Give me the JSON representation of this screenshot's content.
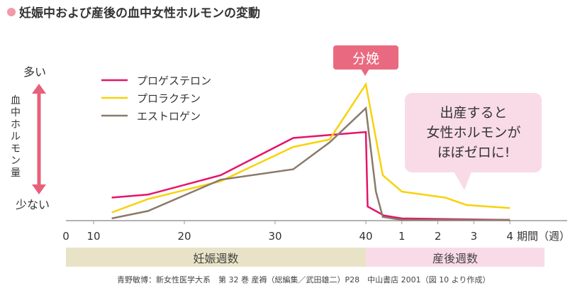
{
  "title": "妊娠中および産後の血中女性ホルモンの変動",
  "chart_data": {
    "type": "line",
    "title": "妊娠中および産後の血中女性ホルモンの変動",
    "ylabel": "血中ホルモン量",
    "y_high_label": "多い",
    "y_low_label": "少ない",
    "ylim": [
      0,
      100
    ],
    "xlabel": "期間（週）",
    "x_ticks_pregnancy": [
      "0",
      "10",
      "20",
      "30",
      "40"
    ],
    "x_ticks_postpartum": [
      "1",
      "2",
      "3",
      "4"
    ],
    "x_unit": "期間（週）",
    "grid": false,
    "legend_position": "top-left",
    "series": [
      {
        "name": "プロゲステロン",
        "color": "#e5146b",
        "points": [
          {
            "phase": "pregnancy",
            "x": 12,
            "y": 15
          },
          {
            "phase": "pregnancy",
            "x": 16,
            "y": 17
          },
          {
            "phase": "pregnancy",
            "x": 24,
            "y": 30
          },
          {
            "phase": "pregnancy",
            "x": 32,
            "y": 55
          },
          {
            "phase": "pregnancy",
            "x": 40,
            "y": 59
          },
          {
            "phase": "postpartum",
            "x": 0.05,
            "y": 9
          },
          {
            "phase": "postpartum",
            "x": 0.5,
            "y": 3
          },
          {
            "phase": "postpartum",
            "x": 1,
            "y": 1
          },
          {
            "phase": "postpartum",
            "x": 4,
            "y": 0
          }
        ]
      },
      {
        "name": "プロラクチン",
        "color": "#f8d20a",
        "points": [
          {
            "phase": "pregnancy",
            "x": 12,
            "y": 5
          },
          {
            "phase": "pregnancy",
            "x": 16,
            "y": 14
          },
          {
            "phase": "pregnancy",
            "x": 24,
            "y": 26
          },
          {
            "phase": "pregnancy",
            "x": 32,
            "y": 49
          },
          {
            "phase": "pregnancy",
            "x": 36,
            "y": 54
          },
          {
            "phase": "pregnancy",
            "x": 40,
            "y": 91
          },
          {
            "phase": "postpartum",
            "x": 0.47,
            "y": 30
          },
          {
            "phase": "postpartum",
            "x": 1,
            "y": 19
          },
          {
            "phase": "postpartum",
            "x": 2.2,
            "y": 15
          },
          {
            "phase": "postpartum",
            "x": 2.8,
            "y": 10
          },
          {
            "phase": "postpartum",
            "x": 4,
            "y": 8
          }
        ]
      },
      {
        "name": "エストロゲン",
        "color": "#8a7a6a",
        "points": [
          {
            "phase": "pregnancy",
            "x": 12,
            "y": 1
          },
          {
            "phase": "pregnancy",
            "x": 16,
            "y": 6
          },
          {
            "phase": "pregnancy",
            "x": 24,
            "y": 27
          },
          {
            "phase": "pregnancy",
            "x": 32,
            "y": 34
          },
          {
            "phase": "pregnancy",
            "x": 36,
            "y": 52
          },
          {
            "phase": "pregnancy",
            "x": 40,
            "y": 75
          },
          {
            "phase": "postpartum",
            "x": 0.28,
            "y": 19
          },
          {
            "phase": "postpartum",
            "x": 0.47,
            "y": 2
          },
          {
            "phase": "postpartum",
            "x": 1,
            "y": 0
          },
          {
            "phase": "postpartum",
            "x": 4,
            "y": 0
          }
        ]
      }
    ],
    "annotations": {
      "delivery": "分娩",
      "callout": [
        "出産すると",
        "女性ホルモンが",
        "ほぼゼロに!"
      ]
    },
    "bands": {
      "pregnancy": "妊娠週数",
      "postpartum": "産後週数"
    }
  },
  "source": "青野敏博：新女性医学大系　第 32 巻 産褥（総編集／武田雄二）P28　中山書店 2001（図 10 より作成）"
}
